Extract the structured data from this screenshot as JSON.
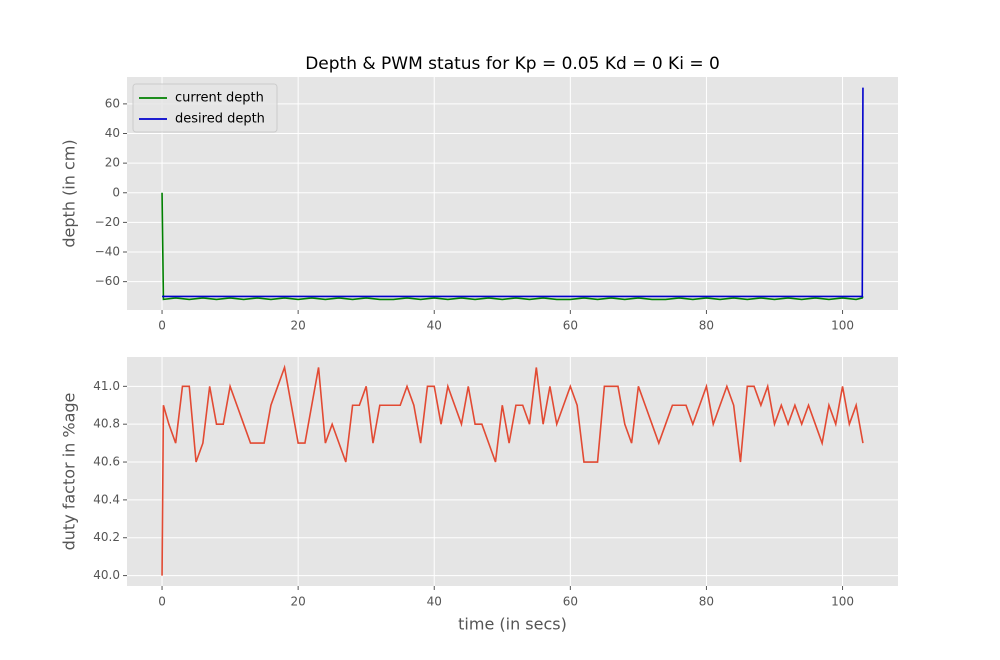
{
  "chart_data": [
    {
      "type": "line",
      "title": "Depth & PWM status for Kp = 0.05 Kd = 0 Ki = 0",
      "ylabel": "depth (in cm)",
      "x": [
        0,
        0.2,
        2,
        4,
        6,
        8,
        10,
        12,
        14,
        16,
        18,
        20,
        22,
        24,
        26,
        28,
        30,
        32,
        34,
        36,
        38,
        40,
        42,
        44,
        46,
        48,
        50,
        52,
        54,
        56,
        58,
        60,
        62,
        64,
        66,
        68,
        70,
        72,
        74,
        76,
        78,
        80,
        82,
        84,
        86,
        88,
        90,
        92,
        94,
        96,
        98,
        100,
        102,
        102.9,
        103
      ],
      "series": [
        {
          "name": "current depth",
          "color": "#008000",
          "values": [
            0,
            -72,
            -71,
            -72,
            -71,
            -72,
            -71,
            -72,
            -71,
            -72,
            -71,
            -72,
            -71,
            -72,
            -71,
            -72,
            -71,
            -72,
            -72,
            -71,
            -72,
            -71,
            -72,
            -71,
            -72,
            -71,
            -72,
            -71,
            -72,
            -71,
            -72,
            -72,
            -71,
            -72,
            -71,
            -72,
            -71,
            -72,
            -72,
            -71,
            -72,
            -71,
            -72,
            -71,
            -72,
            -71,
            -72,
            -71,
            -72,
            -71,
            -72,
            -71,
            -72,
            -71,
            -70
          ]
        },
        {
          "name": "desired depth",
          "color": "#0000cc",
          "values": [
            -70,
            -70,
            -70,
            -70,
            -70,
            -70,
            -70,
            -70,
            -70,
            -70,
            -70,
            -70,
            -70,
            -70,
            -70,
            -70,
            -70,
            -70,
            -70,
            -70,
            -70,
            -70,
            -70,
            -70,
            -70,
            -70,
            -70,
            -70,
            -70,
            -70,
            -70,
            -70,
            -70,
            -70,
            -70,
            -70,
            -70,
            -70,
            -70,
            -70,
            -70,
            -70,
            -70,
            -70,
            -70,
            -70,
            -70,
            -70,
            -70,
            -70,
            -70,
            -70,
            -70,
            -70,
            71
          ]
        }
      ],
      "xlim": [
        -5.15,
        108.15
      ],
      "ylim": [
        -79.15,
        78.15
      ],
      "xticks": [
        0,
        20,
        40,
        60,
        80,
        100
      ],
      "yticks": [
        {
          "value": -60,
          "label": "−60"
        },
        {
          "value": -40,
          "label": "−40"
        },
        {
          "value": -20,
          "label": "−20"
        },
        0,
        20,
        40,
        60
      ],
      "grid": true,
      "legend": "upper-left"
    },
    {
      "type": "line",
      "ylabel": "duty factor in %age",
      "xlabel": "time (in secs)",
      "x": [
        0,
        0.2,
        1,
        2,
        3,
        4,
        5,
        6,
        7,
        8,
        9,
        10,
        11,
        12,
        13,
        14,
        15,
        16,
        17,
        18,
        19,
        20,
        21,
        22,
        23,
        24,
        25,
        26,
        27,
        28,
        29,
        30,
        31,
        32,
        33,
        34,
        35,
        36,
        37,
        38,
        39,
        40,
        41,
        42,
        43,
        44,
        45,
        46,
        47,
        48,
        49,
        50,
        51,
        52,
        53,
        54,
        55,
        56,
        57,
        58,
        59,
        60,
        61,
        62,
        63,
        64,
        65,
        66,
        67,
        68,
        69,
        70,
        71,
        72,
        73,
        74,
        75,
        76,
        77,
        78,
        79,
        80,
        81,
        82,
        83,
        84,
        85,
        86,
        87,
        88,
        89,
        90,
        91,
        92,
        93,
        94,
        95,
        96,
        97,
        98,
        99,
        100,
        101,
        102,
        103
      ],
      "series": [
        {
          "color": "#e24a33",
          "values": [
            40.0,
            40.9,
            40.8,
            40.7,
            41.0,
            41.0,
            40.6,
            40.7,
            41.0,
            40.8,
            40.8,
            41.0,
            40.9,
            40.8,
            40.7,
            40.7,
            40.7,
            40.9,
            41.0,
            41.1,
            40.9,
            40.7,
            40.7,
            40.9,
            41.1,
            40.7,
            40.8,
            40.7,
            40.6,
            40.9,
            40.9,
            41.0,
            40.7,
            40.9,
            40.9,
            40.9,
            40.9,
            41.0,
            40.9,
            40.7,
            41.0,
            41.0,
            40.8,
            41.0,
            40.9,
            40.8,
            41.0,
            40.8,
            40.8,
            40.7,
            40.6,
            40.9,
            40.7,
            40.9,
            40.9,
            40.8,
            41.1,
            40.8,
            41.0,
            40.8,
            40.9,
            41.0,
            40.9,
            40.6,
            40.6,
            40.6,
            41.0,
            41.0,
            41.0,
            40.8,
            40.7,
            41.0,
            40.9,
            40.8,
            40.7,
            40.8,
            40.9,
            40.9,
            40.9,
            40.8,
            40.9,
            41.0,
            40.8,
            40.9,
            41.0,
            40.9,
            40.6,
            41.0,
            41.0,
            40.9,
            41.0,
            40.8,
            40.9,
            40.8,
            40.9,
            40.8,
            40.9,
            40.8,
            40.7,
            40.9,
            40.8,
            41.0,
            40.8,
            40.9,
            40.7
          ]
        }
      ],
      "xlim": [
        -5.15,
        108.15
      ],
      "ylim": [
        39.945,
        41.155
      ],
      "xticks": [
        0,
        20,
        40,
        60,
        80,
        100
      ],
      "yticks": [
        {
          "value": 40.0,
          "label": "40.0"
        },
        40.2,
        40.4,
        40.6,
        40.8,
        {
          "value": 41.0,
          "label": "41.0"
        }
      ],
      "grid": true
    }
  ]
}
